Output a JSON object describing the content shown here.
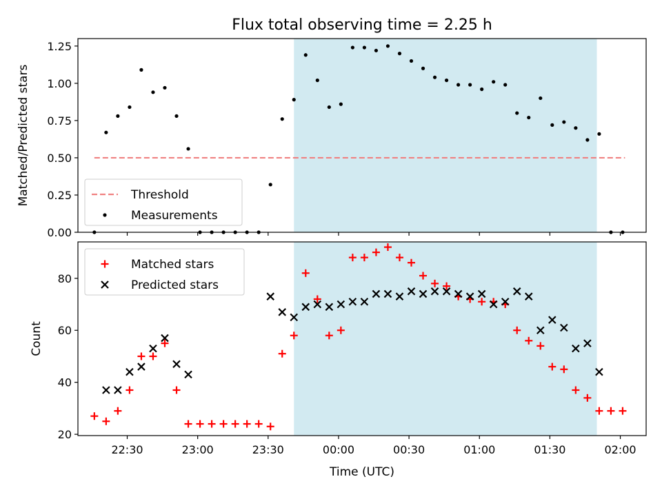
{
  "title": "Flux total observing time = 2.25 h",
  "colors": {
    "threshold": "#f08080",
    "measurement": "#000000",
    "matched": "#ff0000",
    "predicted": "#000000",
    "shade": "#add8e6"
  },
  "chart_data": [
    {
      "type": "scatter",
      "ylabel": "Matched/Predicted stars",
      "ylim": [
        0.0,
        1.3
      ],
      "xlim": [
        "22:09",
        "02:11"
      ],
      "yticks": [
        "0.00",
        "0.25",
        "0.50",
        "0.75",
        "1.00",
        "1.25"
      ],
      "ytick_values": [
        0.0,
        0.25,
        0.5,
        0.75,
        1.0,
        1.25
      ],
      "shaded_interval": [
        "23:41",
        "01:50"
      ],
      "legend_position": "lower-left",
      "threshold": {
        "name": "Threshold",
        "value": 0.5,
        "x_range": [
          "22:16",
          "02:02"
        ],
        "style": "dashed"
      },
      "series": [
        {
          "name": "Measurements",
          "marker": "dot",
          "x": [
            "22:16",
            "22:21",
            "22:26",
            "22:31",
            "22:36",
            "22:41",
            "22:46",
            "22:51",
            "22:56",
            "23:01",
            "23:06",
            "23:11",
            "23:16",
            "23:21",
            "23:26",
            "23:31",
            "23:36",
            "23:41",
            "23:46",
            "23:51",
            "23:56",
            "00:01",
            "00:06",
            "00:11",
            "00:16",
            "00:21",
            "00:26",
            "00:31",
            "00:36",
            "00:41",
            "00:46",
            "00:51",
            "00:56",
            "01:01",
            "01:06",
            "01:11",
            "01:16",
            "01:21",
            "01:26",
            "01:31",
            "01:36",
            "01:41",
            "01:46",
            "01:51",
            "01:56",
            "02:01"
          ],
          "values": [
            0.0,
            0.67,
            0.78,
            0.84,
            1.09,
            0.94,
            0.97,
            0.78,
            0.56,
            0.0,
            0.0,
            0.0,
            0.0,
            0.0,
            0.0,
            0.32,
            0.76,
            0.89,
            1.19,
            1.02,
            0.84,
            0.86,
            1.24,
            1.24,
            1.22,
            1.25,
            1.2,
            1.15,
            1.1,
            1.04,
            1.02,
            0.99,
            0.99,
            0.96,
            1.01,
            0.99,
            0.8,
            0.77,
            0.9,
            0.72,
            0.74,
            0.7,
            0.62,
            0.66,
            0.0,
            0.0
          ]
        }
      ]
    },
    {
      "type": "scatter",
      "xlabel": "Time (UTC)",
      "ylabel": "Count",
      "ylim": [
        19.5,
        94
      ],
      "xlim": [
        "22:09",
        "02:11"
      ],
      "xticks": [
        "22:30",
        "23:00",
        "23:30",
        "00:00",
        "00:30",
        "01:00",
        "01:30",
        "02:00"
      ],
      "yticks": [
        "20",
        "40",
        "60",
        "80"
      ],
      "ytick_values": [
        20,
        40,
        60,
        80
      ],
      "shaded_interval": [
        "23:41",
        "01:50"
      ],
      "legend_position": "upper-left",
      "series": [
        {
          "name": "Matched stars",
          "marker": "plus",
          "x": [
            "22:16",
            "22:21",
            "22:26",
            "22:31",
            "22:36",
            "22:41",
            "22:46",
            "22:51",
            "22:56",
            "23:01",
            "23:06",
            "23:11",
            "23:16",
            "23:21",
            "23:26",
            "23:31",
            "23:36",
            "23:41",
            "23:46",
            "23:51",
            "23:56",
            "00:01",
            "00:06",
            "00:11",
            "00:16",
            "00:21",
            "00:26",
            "00:31",
            "00:36",
            "00:41",
            "00:46",
            "00:51",
            "00:56",
            "01:01",
            "01:06",
            "01:11",
            "01:16",
            "01:21",
            "01:26",
            "01:31",
            "01:36",
            "01:41",
            "01:46",
            "01:51",
            "01:56",
            "02:01"
          ],
          "values": [
            27,
            25,
            29,
            37,
            50,
            50,
            55,
            37,
            24,
            24,
            24,
            24,
            24,
            24,
            24,
            23,
            51,
            58,
            82,
            72,
            58,
            60,
            88,
            88,
            90,
            92,
            88,
            86,
            81,
            78,
            77,
            73,
            72,
            71,
            71,
            70,
            60,
            56,
            54,
            46,
            45,
            37,
            34,
            29,
            29,
            29
          ]
        },
        {
          "name": "Predicted stars",
          "marker": "x",
          "x": [
            "22:21",
            "22:26",
            "22:31",
            "22:36",
            "22:41",
            "22:46",
            "22:51",
            "22:56",
            "23:31",
            "23:36",
            "23:41",
            "23:46",
            "23:51",
            "23:56",
            "00:01",
            "00:06",
            "00:11",
            "00:16",
            "00:21",
            "00:26",
            "00:31",
            "00:36",
            "00:41",
            "00:46",
            "00:51",
            "00:56",
            "01:01",
            "01:06",
            "01:11",
            "01:16",
            "01:21",
            "01:26",
            "01:31",
            "01:36",
            "01:41",
            "01:46",
            "01:51"
          ],
          "values": [
            37,
            37,
            44,
            46,
            53,
            57,
            47,
            43,
            73,
            67,
            65,
            69,
            70,
            69,
            70,
            71,
            71,
            74,
            74,
            73,
            75,
            74,
            75,
            75,
            74,
            73,
            74,
            70,
            71,
            75,
            73,
            60,
            64,
            61,
            53,
            55,
            44
          ]
        }
      ]
    }
  ]
}
